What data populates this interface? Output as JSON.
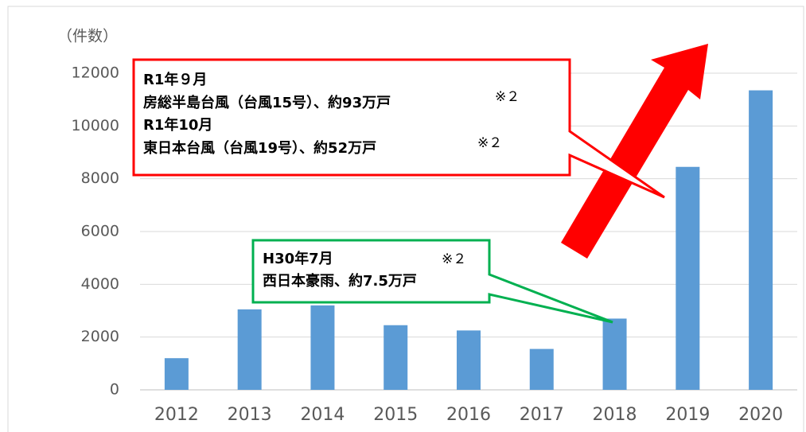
{
  "chart_data": {
    "type": "bar",
    "y_label": "（件数）",
    "categories": [
      "2012",
      "2013",
      "2014",
      "2015",
      "2016",
      "2017",
      "2018",
      "2019",
      "2020"
    ],
    "values": [
      1200,
      3050,
      3200,
      2450,
      2250,
      1550,
      2700,
      8450,
      11350
    ],
    "color": "#5b9bd5",
    "ylim": [
      0,
      12000
    ],
    "yticks": [
      0,
      2000,
      4000,
      6000,
      8000,
      10000,
      12000
    ],
    "grid": true,
    "annotations": [
      {
        "color": "#ff0000",
        "texts": [
          "R1年９月",
          "房総半島台風（台風15号）、約93万戸",
          "※２",
          "R1年10月",
          "東日本台風（台風19号）、約52万戸",
          "※２"
        ]
      },
      {
        "color": "#00b050",
        "texts": [
          "H30年7月",
          "※２",
          "西日本豪雨、約7.5万戸"
        ]
      }
    ]
  }
}
